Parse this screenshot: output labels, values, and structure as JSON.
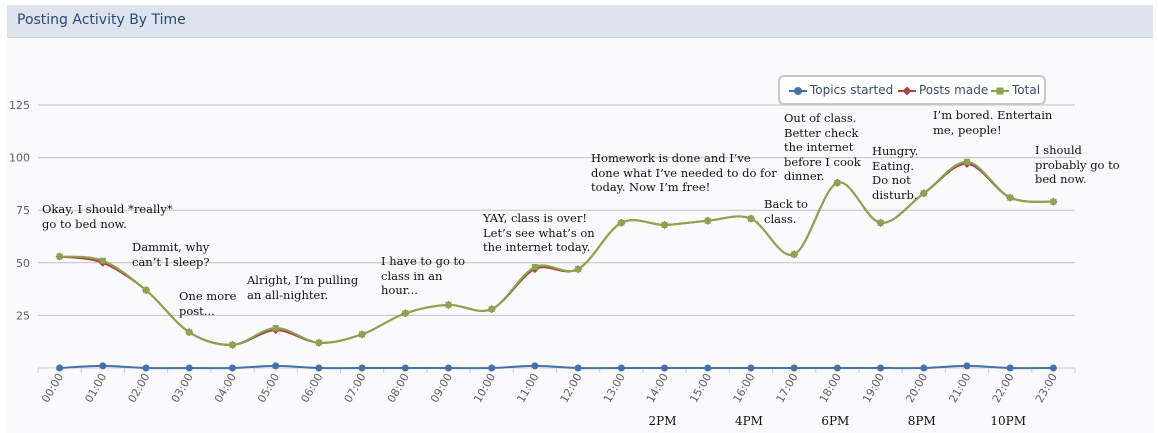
{
  "header": {
    "title": "Posting Activity By Time"
  },
  "legend": {
    "items": [
      {
        "label": "Topics started",
        "color": "#4572a7",
        "marker": "circle"
      },
      {
        "label": "Posts made",
        "color": "#aa4643",
        "marker": "diamond"
      },
      {
        "label": "Total",
        "color": "#89a54e",
        "marker": "square"
      }
    ]
  },
  "chart_data": {
    "type": "line",
    "title": "Posting Activity By Time",
    "xlabel": "",
    "ylabel": "",
    "ylim": [
      0,
      125
    ],
    "yticks": [
      25,
      50,
      75,
      100,
      125
    ],
    "grid": true,
    "legend_position": "top-right",
    "categories": [
      "00:00",
      "01:00",
      "02:00",
      "03:00",
      "04:00",
      "05:00",
      "06:00",
      "07:00",
      "08:00",
      "09:00",
      "10:00",
      "11:00",
      "12:00",
      "13:00",
      "14:00",
      "15:00",
      "16:00",
      "17:00",
      "18:00",
      "19:00",
      "20:00",
      "21:00",
      "22:00",
      "23:00"
    ],
    "series": [
      {
        "name": "Topics started",
        "color": "#4572a7",
        "values": [
          0,
          1,
          0,
          0,
          0,
          1,
          0,
          0,
          0,
          0,
          0,
          1,
          0,
          0,
          0,
          0,
          0,
          0,
          0,
          0,
          0,
          1,
          0,
          0
        ]
      },
      {
        "name": "Posts made",
        "color": "#aa4643",
        "values": [
          53,
          50,
          37,
          17,
          11,
          18,
          12,
          16,
          26,
          30,
          28,
          47,
          47,
          69,
          68,
          70,
          71,
          54,
          88,
          69,
          83,
          97,
          81,
          79
        ]
      },
      {
        "name": "Total",
        "color": "#89a54e",
        "values": [
          53,
          51,
          37,
          17,
          11,
          19,
          12,
          16,
          26,
          30,
          28,
          48,
          47,
          69,
          68,
          70,
          71,
          54,
          88,
          69,
          83,
          98,
          81,
          79
        ]
      }
    ],
    "time_labels": [
      "2PM",
      "4PM",
      "6PM",
      "8PM",
      "10PM"
    ],
    "annotations": [
      "Okay, I should *really*\ngo to bed now.",
      "Dammit, why\ncan’t I sleep?",
      "One more\npost...",
      "Alright, I’m pulling\nan all-nighter.",
      "I have to go to\nclass in an\nhour...",
      "YAY, class is over!\nLet’s see what’s on\nthe internet today.",
      "Homework is done and I’ve\ndone what I’ve needed to do for\ntoday. Now I’m free!",
      "Back to\nclass.",
      "Out of class.\nBetter check\nthe internet\nbefore I cook\ndinner.",
      "Hungry.\nEating.\nDo not\ndisturb.",
      "I’m bored. Entertain\nme, people!",
      "I should\nprobably go to\nbed now."
    ]
  }
}
